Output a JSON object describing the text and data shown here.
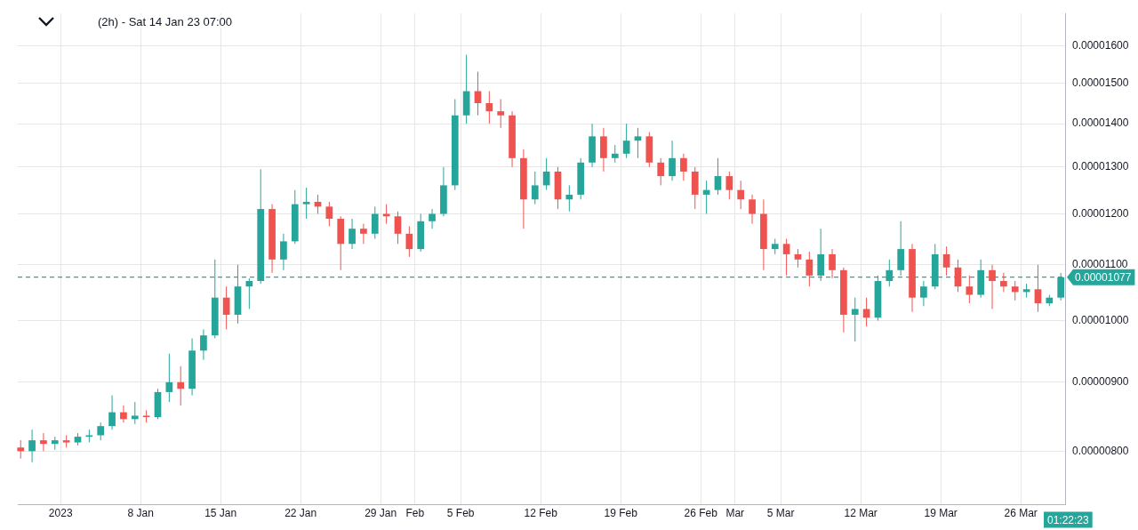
{
  "chart_data": {
    "type": "candlestick",
    "title": "(2h) - Sat 14 Jan 23 07:00",
    "x": [
      "2022-12-28T12:00",
      "2022-12-29T12:00",
      "2022-12-30T12:00",
      "2022-12-31T12:00",
      "2023-01-01T12:00",
      "2023-01-02T12:00",
      "2023-01-03T12:00",
      "2023-01-04T12:00",
      "2023-01-05T12:00",
      "2023-01-06T12:00",
      "2023-01-07T12:00",
      "2023-01-08T12:00",
      "2023-01-09T12:00",
      "2023-01-10T12:00",
      "2023-01-11T12:00",
      "2023-01-12T12:00",
      "2023-01-13T12:00",
      "2023-01-14T12:00",
      "2023-01-15T12:00",
      "2023-01-16T12:00",
      "2023-01-17T12:00",
      "2023-01-18T12:00",
      "2023-01-19T12:00",
      "2023-01-20T12:00",
      "2023-01-21T12:00",
      "2023-01-22T12:00",
      "2023-01-23T12:00",
      "2023-01-24T12:00",
      "2023-01-25T12:00",
      "2023-01-26T12:00",
      "2023-01-27T12:00",
      "2023-01-28T12:00",
      "2023-01-29T12:00",
      "2023-01-30T12:00",
      "2023-01-31T12:00",
      "2023-02-01T12:00",
      "2023-02-02T12:00",
      "2023-02-03T12:00",
      "2023-02-04T12:00",
      "2023-02-05T12:00",
      "2023-02-06T12:00",
      "2023-02-07T12:00",
      "2023-02-08T12:00",
      "2023-02-09T12:00",
      "2023-02-10T12:00",
      "2023-02-11T12:00",
      "2023-02-12T12:00",
      "2023-02-13T12:00",
      "2023-02-14T12:00",
      "2023-02-15T12:00",
      "2023-02-16T12:00",
      "2023-02-17T12:00",
      "2023-02-18T12:00",
      "2023-02-19T12:00",
      "2023-02-20T12:00",
      "2023-02-21T12:00",
      "2023-02-22T12:00",
      "2023-02-23T12:00",
      "2023-02-24T12:00",
      "2023-02-25T12:00",
      "2023-02-26T12:00",
      "2023-02-27T12:00",
      "2023-02-28T12:00",
      "2023-03-01T12:00",
      "2023-03-02T12:00",
      "2023-03-03T12:00",
      "2023-03-04T12:00",
      "2023-03-05T12:00",
      "2023-03-06T12:00",
      "2023-03-07T12:00",
      "2023-03-08T12:00",
      "2023-03-09T12:00",
      "2023-03-10T12:00",
      "2023-03-11T12:00",
      "2023-03-12T12:00",
      "2023-03-13T12:00",
      "2023-03-14T12:00",
      "2023-03-15T12:00",
      "2023-03-16T12:00",
      "2023-03-17T12:00",
      "2023-03-18T12:00",
      "2023-03-19T12:00",
      "2023-03-20T12:00",
      "2023-03-21T12:00",
      "2023-03-22T12:00",
      "2023-03-23T12:00",
      "2023-03-24T12:00",
      "2023-03-25T12:00",
      "2023-03-26T12:00",
      "2023-03-27T12:00",
      "2023-03-28T12:00",
      "2023-03-29T12:00"
    ],
    "ohlc": [
      [
        8.05e-06,
        8.15e-06,
        7.9e-06,
        8e-06
      ],
      [
        8e-06,
        8.3e-06,
        7.85e-06,
        8.15e-06
      ],
      [
        8.15e-06,
        8.25e-06,
        8e-06,
        8.1e-06
      ],
      [
        8.1e-06,
        8.2e-06,
        8.02e-06,
        8.15e-06
      ],
      [
        8.15e-06,
        8.22e-06,
        8.05e-06,
        8.12e-06
      ],
      [
        8.12e-06,
        8.25e-06,
        8.08e-06,
        8.2e-06
      ],
      [
        8.2e-06,
        8.3e-06,
        8.12e-06,
        8.22e-06
      ],
      [
        8.22e-06,
        8.4e-06,
        8.15e-06,
        8.35e-06
      ],
      [
        8.35e-06,
        8.8e-06,
        8.3e-06,
        8.55e-06
      ],
      [
        8.55e-06,
        8.65e-06,
        8.4e-06,
        8.45e-06
      ],
      [
        8.45e-06,
        8.7e-06,
        8.38e-06,
        8.5e-06
      ],
      [
        8.5e-06,
        8.58e-06,
        8.4e-06,
        8.48e-06
      ],
      [
        8.48e-06,
        8.9e-06,
        8.45e-06,
        8.85e-06
      ],
      [
        8.85e-06,
        9.45e-06,
        8.7e-06,
        9e-06
      ],
      [
        9e-06,
        9.25e-06,
        8.65e-06,
        8.9e-06
      ],
      [
        8.9e-06,
        9.7e-06,
        8.8e-06,
        9.5e-06
      ],
      [
        9.5e-06,
        9.85e-06,
        9.35e-06,
        9.75e-06
      ],
      [
        9.75e-06,
        1.11e-05,
        9.7e-06,
        1.04e-05
      ],
      [
        1.04e-05,
        1.06e-05,
        9.85e-06,
        1.01e-05
      ],
      [
        1.01e-05,
        1.1e-05,
        9.95e-06,
        1.06e-05
      ],
      [
        1.06e-05,
        1.075e-05,
        1.02e-05,
        1.07e-05
      ],
      [
        1.07e-05,
        1.295e-05,
        1.065e-05,
        1.21e-05
      ],
      [
        1.21e-05,
        1.22e-05,
        1.085e-05,
        1.11e-05
      ],
      [
        1.11e-05,
        1.16e-05,
        1.09e-05,
        1.145e-05
      ],
      [
        1.145e-05,
        1.25e-05,
        1.14e-05,
        1.22e-05
      ],
      [
        1.22e-05,
        1.255e-05,
        1.19e-05,
        1.225e-05
      ],
      [
        1.225e-05,
        1.24e-05,
        1.2e-05,
        1.215e-05
      ],
      [
        1.215e-05,
        1.225e-05,
        1.175e-05,
        1.19e-05
      ],
      [
        1.19e-05,
        1.195e-05,
        1.09e-05,
        1.14e-05
      ],
      [
        1.14e-05,
        1.19e-05,
        1.13e-05,
        1.17e-05
      ],
      [
        1.17e-05,
        1.18e-05,
        1.14e-05,
        1.16e-05
      ],
      [
        1.16e-05,
        1.215e-05,
        1.15e-05,
        1.2e-05
      ],
      [
        1.2e-05,
        1.22e-05,
        1.18e-05,
        1.195e-05
      ],
      [
        1.195e-05,
        1.205e-05,
        1.14e-05,
        1.16e-05
      ],
      [
        1.16e-05,
        1.175e-05,
        1.115e-05,
        1.13e-05
      ],
      [
        1.13e-05,
        1.2e-05,
        1.125e-05,
        1.185e-05
      ],
      [
        1.185e-05,
        1.21e-05,
        1.17e-05,
        1.2e-05
      ],
      [
        1.2e-05,
        1.3e-05,
        1.195e-05,
        1.26e-05
      ],
      [
        1.26e-05,
        1.46e-05,
        1.25e-05,
        1.42e-05
      ],
      [
        1.42e-05,
        1.575e-05,
        1.4e-05,
        1.48e-05
      ],
      [
        1.48e-05,
        1.53e-05,
        1.42e-05,
        1.45e-05
      ],
      [
        1.45e-05,
        1.48e-05,
        1.4e-05,
        1.43e-05
      ],
      [
        1.43e-05,
        1.46e-05,
        1.39e-05,
        1.42e-05
      ],
      [
        1.42e-05,
        1.43e-05,
        1.3e-05,
        1.32e-05
      ],
      [
        1.32e-05,
        1.34e-05,
        1.17e-05,
        1.23e-05
      ],
      [
        1.23e-05,
        1.29e-05,
        1.22e-05,
        1.26e-05
      ],
      [
        1.26e-05,
        1.32e-05,
        1.25e-05,
        1.29e-05
      ],
      [
        1.29e-05,
        1.3e-05,
        1.21e-05,
        1.23e-05
      ],
      [
        1.23e-05,
        1.26e-05,
        1.205e-05,
        1.24e-05
      ],
      [
        1.24e-05,
        1.32e-05,
        1.23e-05,
        1.31e-05
      ],
      [
        1.31e-05,
        1.4e-05,
        1.3e-05,
        1.37e-05
      ],
      [
        1.37e-05,
        1.39e-05,
        1.29e-05,
        1.32e-05
      ],
      [
        1.32e-05,
        1.35e-05,
        1.31e-05,
        1.33e-05
      ],
      [
        1.33e-05,
        1.4e-05,
        1.32e-05,
        1.36e-05
      ],
      [
        1.36e-05,
        1.39e-05,
        1.32e-05,
        1.37e-05
      ],
      [
        1.37e-05,
        1.38e-05,
        1.3e-05,
        1.31e-05
      ],
      [
        1.31e-05,
        1.32e-05,
        1.26e-05,
        1.28e-05
      ],
      [
        1.28e-05,
        1.36e-05,
        1.27e-05,
        1.32e-05
      ],
      [
        1.32e-05,
        1.33e-05,
        1.27e-05,
        1.29e-05
      ],
      [
        1.29e-05,
        1.3e-05,
        1.21e-05,
        1.24e-05
      ],
      [
        1.24e-05,
        1.27e-05,
        1.2e-05,
        1.25e-05
      ],
      [
        1.25e-05,
        1.32e-05,
        1.24e-05,
        1.28e-05
      ],
      [
        1.28e-05,
        1.29e-05,
        1.23e-05,
        1.25e-05
      ],
      [
        1.25e-05,
        1.27e-05,
        1.21e-05,
        1.23e-05
      ],
      [
        1.23e-05,
        1.24e-05,
        1.18e-05,
        1.2e-05
      ],
      [
        1.2e-05,
        1.23e-05,
        1.09e-05,
        1.13e-05
      ],
      [
        1.13e-05,
        1.15e-05,
        1.12e-05,
        1.14e-05
      ],
      [
        1.14e-05,
        1.15e-05,
        1.08e-05,
        1.12e-05
      ],
      [
        1.12e-05,
        1.13e-05,
        1.095e-05,
        1.11e-05
      ],
      [
        1.11e-05,
        1.125e-05,
        1.06e-05,
        1.08e-05
      ],
      [
        1.08e-05,
        1.17e-05,
        1.07e-05,
        1.12e-05
      ],
      [
        1.12e-05,
        1.13e-05,
        1.075e-05,
        1.09e-05
      ],
      [
        1.09e-05,
        1.095e-05,
        9.8e-06,
        1.01e-05
      ],
      [
        1.01e-05,
        1.04e-05,
        9.65e-06,
        1.02e-05
      ],
      [
        1.02e-05,
        1.04e-05,
        9.9e-06,
        1.005e-05
      ],
      [
        1.005e-05,
        1.08e-05,
        1e-05,
        1.07e-05
      ],
      [
        1.07e-05,
        1.11e-05,
        1.06e-05,
        1.09e-05
      ],
      [
        1.09e-05,
        1.185e-05,
        1.08e-05,
        1.13e-05
      ],
      [
        1.13e-05,
        1.14e-05,
        1.015e-05,
        1.04e-05
      ],
      [
        1.04e-05,
        1.07e-05,
        1.025e-05,
        1.06e-05
      ],
      [
        1.06e-05,
        1.14e-05,
        1.055e-05,
        1.12e-05
      ],
      [
        1.12e-05,
        1.135e-05,
        1.08e-05,
        1.095e-05
      ],
      [
        1.095e-05,
        1.11e-05,
        1.05e-05,
        1.06e-05
      ],
      [
        1.06e-05,
        1.08e-05,
        1.03e-05,
        1.045e-05
      ],
      [
        1.045e-05,
        1.11e-05,
        1.04e-05,
        1.09e-05
      ],
      [
        1.09e-05,
        1.1e-05,
        1.02e-05,
        1.07e-05
      ],
      [
        1.07e-05,
        1.085e-05,
        1.05e-05,
        1.06e-05
      ],
      [
        1.06e-05,
        1.07e-05,
        1.035e-05,
        1.05e-05
      ],
      [
        1.05e-05,
        1.065e-05,
        1.04e-05,
        1.055e-05
      ],
      [
        1.055e-05,
        1.1e-05,
        1.015e-05,
        1.03e-05
      ],
      [
        1.03e-05,
        1.045e-05,
        1.025e-05,
        1.04e-05
      ],
      [
        1.04e-05,
        1.085e-05,
        1.035e-05,
        1.077e-05
      ]
    ],
    "xlim": [
      "2022-12-28T06:00",
      "2023-03-29T21:00"
    ],
    "xticks": [
      {
        "value": "2023-01-01",
        "label": "2023"
      },
      {
        "value": "2023-01-08",
        "label": "8 Jan"
      },
      {
        "value": "2023-01-15",
        "label": "15 Jan"
      },
      {
        "value": "2023-01-22",
        "label": "22 Jan"
      },
      {
        "value": "2023-01-29",
        "label": "29 Jan"
      },
      {
        "value": "2023-02-01",
        "label": "Feb"
      },
      {
        "value": "2023-02-05",
        "label": "5 Feb"
      },
      {
        "value": "2023-02-12",
        "label": "12 Feb"
      },
      {
        "value": "2023-02-19",
        "label": "19 Feb"
      },
      {
        "value": "2023-02-26",
        "label": "26 Feb"
      },
      {
        "value": "2023-03-01",
        "label": "Mar"
      },
      {
        "value": "2023-03-05",
        "label": "5 Mar"
      },
      {
        "value": "2023-03-12",
        "label": "12 Mar"
      },
      {
        "value": "2023-03-19",
        "label": "19 Mar"
      },
      {
        "value": "2023-03-26",
        "label": "26 Mar"
      }
    ],
    "ylim": [
      7.3e-06,
      1.69e-05
    ],
    "yticks": [
      {
        "value": 8e-06,
        "label": "0.00000800"
      },
      {
        "value": 9e-06,
        "label": "0.00000900"
      },
      {
        "value": 1e-05,
        "label": "0.00001000"
      },
      {
        "value": 1.1e-05,
        "label": "0.00001100"
      },
      {
        "value": 1.2e-05,
        "label": "0.00001200"
      },
      {
        "value": 1.3e-05,
        "label": "0.00001300"
      },
      {
        "value": 1.4e-05,
        "label": "0.00001400"
      },
      {
        "value": 1.5e-05,
        "label": "0.00001500"
      },
      {
        "value": 1.6e-05,
        "label": "0.00001600"
      }
    ],
    "log": "y",
    "grid": true,
    "ref_lines": [
      {
        "axis": "y",
        "value": 1.077e-05,
        "label": "0.00001077",
        "color": "#26a69a",
        "line_style": "dashed"
      }
    ],
    "annotations": [
      "01:22:23"
    ]
  }
}
